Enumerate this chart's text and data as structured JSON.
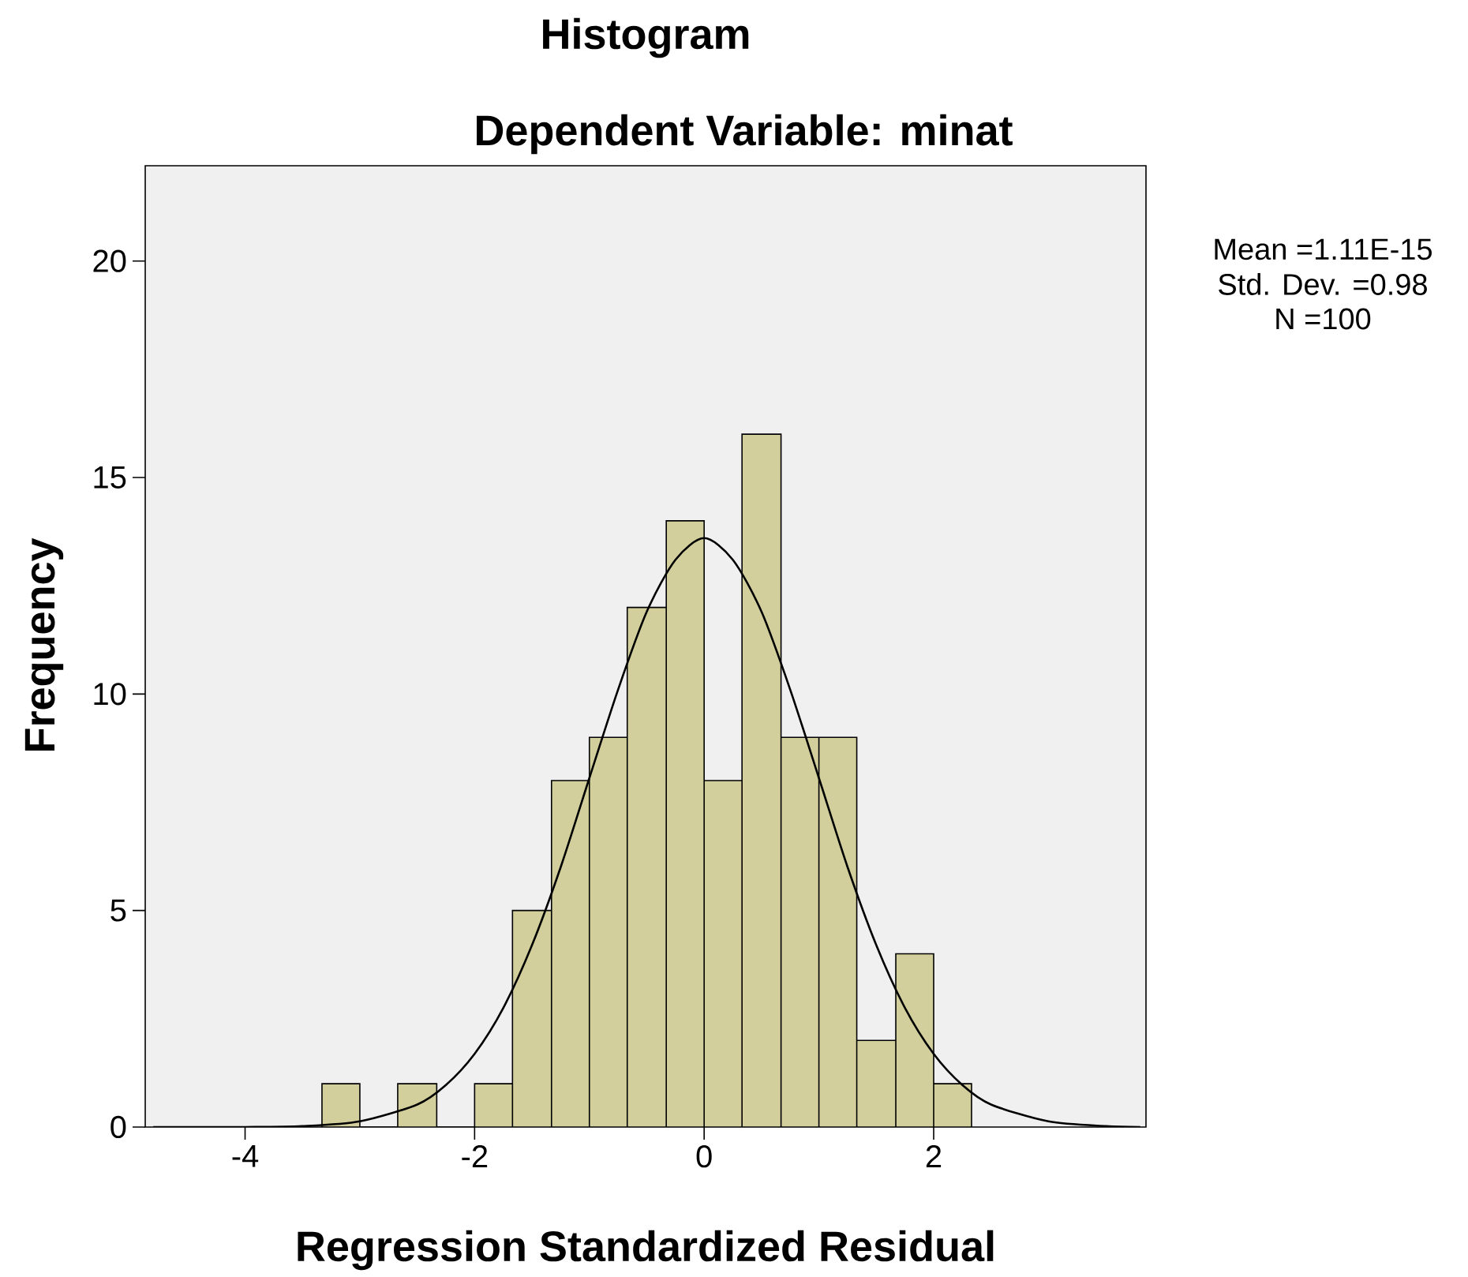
{
  "chart_data": {
    "type": "histogram",
    "title": "Histogram",
    "subtitle": "Dependent Variable: minat",
    "xlabel": "Regression Standardized Residual",
    "ylabel": "Frequency",
    "bins": [
      -3.33,
      -3.0,
      -2.67,
      -2.33,
      -2.0,
      -1.67,
      -1.33,
      -1.0,
      -0.67,
      -0.33,
      0.0,
      0.33,
      0.67,
      1.0,
      1.33,
      1.67,
      2.0,
      2.33
    ],
    "values": [
      1,
      0,
      1,
      0,
      1,
      5,
      8,
      9,
      12,
      14,
      8,
      16,
      9,
      9,
      2,
      4,
      1
    ],
    "color": "#d3cf9c",
    "series": [
      {
        "type": "line",
        "color": "#000000",
        "x": [
          -4.8,
          -4.0,
          -3.5,
          -3.0,
          -2.5,
          -2.25,
          -2.0,
          -1.75,
          -1.5,
          -1.25,
          -1.0,
          -0.75,
          -0.5,
          -0.25,
          0.0,
          0.25,
          0.5,
          0.75,
          1.0,
          1.25,
          1.5,
          1.75,
          2.0,
          2.25,
          2.5,
          3.0,
          3.5,
          3.8
        ],
        "values": [
          0.0,
          0.0,
          0.02,
          0.13,
          0.52,
          0.97,
          1.69,
          2.75,
          4.2,
          6.0,
          8.06,
          10.1,
          11.9,
          13.1,
          13.6,
          13.1,
          11.9,
          10.1,
          8.06,
          6.0,
          4.2,
          2.75,
          1.69,
          0.97,
          0.52,
          0.13,
          0.02,
          0.0
        ]
      }
    ],
    "xlim": [
      -4.87,
      3.85
    ],
    "ylim": [
      0,
      22.2
    ],
    "xticks": [
      -4,
      -2,
      0,
      2
    ],
    "yticks": [
      0,
      5,
      10,
      15,
      20
    ],
    "grid": false,
    "annotations": [
      "Mean =1.11E-15",
      "Std. Dev. =0.98",
      "N =100"
    ]
  }
}
